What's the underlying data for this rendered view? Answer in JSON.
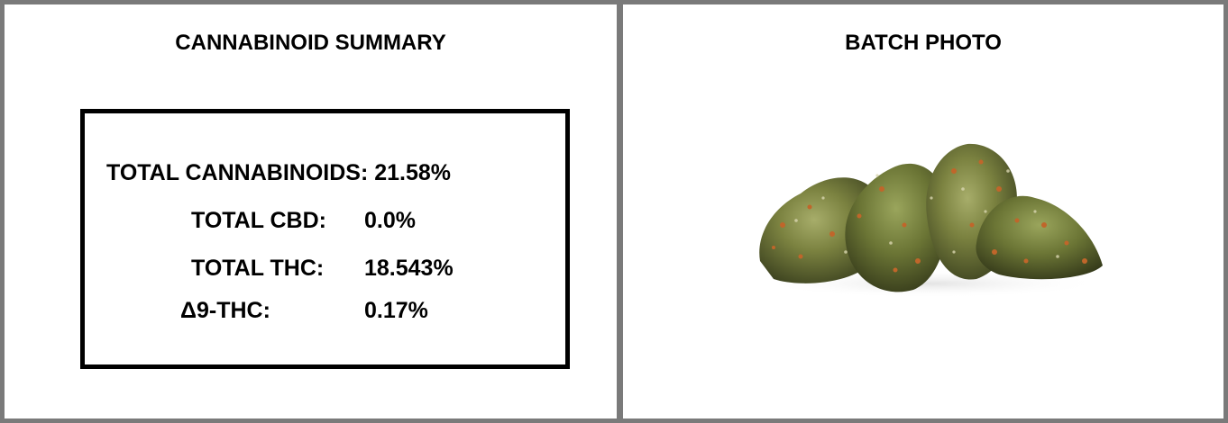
{
  "left_panel": {
    "title": "CANNABINOID SUMMARY",
    "total_cannabinoids": "TOTAL CANNABINOIDS: 21.58%",
    "rows": [
      {
        "label": "TOTAL CBD:",
        "value": "0.0%"
      },
      {
        "label": "TOTAL THC:",
        "value": "18.543%"
      },
      {
        "label": "Δ9-THC:",
        "value": "0.17%"
      }
    ]
  },
  "right_panel": {
    "title": "BATCH PHOTO",
    "photo_subject": "cannabis-buds"
  },
  "colors": {
    "border": "#7a7a7a",
    "text": "#000000",
    "bud_green": "#6f7a3a",
    "bud_orange": "#c0662a"
  }
}
